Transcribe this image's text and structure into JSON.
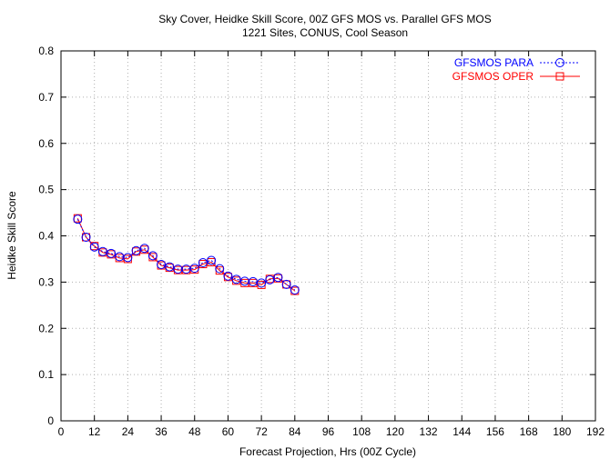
{
  "chart_data": {
    "type": "line",
    "title": "Sky Cover, Heidke Skill Score, 00Z GFS MOS vs. Parallel GFS MOS",
    "subtitle": "1221 Sites, CONUS, Cool Season",
    "xlabel": "Forecast Projection, Hrs (00Z Cycle)",
    "ylabel": "Heidke Skill Score",
    "xlim": [
      0,
      192
    ],
    "ylim": [
      0,
      0.8
    ],
    "xticks": [
      0,
      12,
      24,
      36,
      48,
      60,
      72,
      84,
      96,
      108,
      120,
      132,
      144,
      156,
      168,
      180,
      192
    ],
    "yticks": [
      0,
      0.1,
      0.2,
      0.3,
      0.4,
      0.5,
      0.6,
      0.7,
      0.8
    ],
    "xtick_labels": [
      "0",
      "12",
      "24",
      "36",
      "48",
      "60",
      "72",
      "84",
      "96",
      "108",
      "120",
      "132",
      "144",
      "156",
      "168",
      "180",
      "192"
    ],
    "ytick_labels": [
      "0",
      "0.1",
      "0.2",
      "0.3",
      "0.4",
      "0.5",
      "0.6",
      "0.7",
      "0.8"
    ],
    "grid": true,
    "legend_position": "top-right",
    "x": [
      6,
      9,
      12,
      15,
      18,
      21,
      24,
      27,
      30,
      33,
      36,
      39,
      42,
      45,
      48,
      51,
      54,
      57,
      60,
      63,
      66,
      69,
      72,
      75,
      78,
      81,
      84
    ],
    "series": [
      {
        "name": "GFSMOS PARA",
        "color": "#0000ff",
        "marker": "circle",
        "line_style": "dotted",
        "values": [
          0.436,
          0.397,
          0.376,
          0.366,
          0.362,
          0.355,
          0.353,
          0.368,
          0.373,
          0.357,
          0.338,
          0.333,
          0.328,
          0.328,
          0.33,
          0.342,
          0.347,
          0.329,
          0.313,
          0.306,
          0.302,
          0.301,
          0.298,
          0.305,
          0.31,
          0.295,
          0.283
        ]
      },
      {
        "name": "GFSMOS OPER",
        "color": "#ff0000",
        "marker": "square",
        "line_style": "solid",
        "values": [
          0.438,
          0.397,
          0.378,
          0.364,
          0.36,
          0.352,
          0.35,
          0.366,
          0.37,
          0.354,
          0.336,
          0.331,
          0.326,
          0.326,
          0.327,
          0.339,
          0.343,
          0.325,
          0.311,
          0.303,
          0.298,
          0.298,
          0.294,
          0.307,
          0.308,
          0.295,
          0.281
        ]
      }
    ]
  }
}
